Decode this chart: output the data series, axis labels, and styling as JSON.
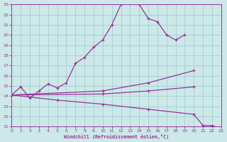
{
  "xlabel": "Windchill (Refroidissement éolien,°C)",
  "bg_color": "#cce8e8",
  "line_color": "#993399",
  "grid_color": "#99cccc",
  "xlim": [
    0,
    23
  ],
  "ylim": [
    11,
    23
  ],
  "xticks": [
    0,
    1,
    2,
    3,
    4,
    5,
    6,
    7,
    8,
    9,
    10,
    11,
    12,
    13,
    14,
    15,
    16,
    17,
    18,
    19,
    20,
    21,
    22,
    23
  ],
  "yticks": [
    11,
    12,
    13,
    14,
    15,
    16,
    17,
    18,
    19,
    20,
    21,
    22,
    23
  ],
  "line1_x": [
    0,
    1,
    2,
    3,
    4,
    5,
    6,
    7,
    8,
    9,
    10,
    11,
    12,
    13,
    14,
    15,
    16,
    17,
    18,
    19
  ],
  "line1_y": [
    14.1,
    14.9,
    13.8,
    14.5,
    15.2,
    14.8,
    15.3,
    17.2,
    17.8,
    18.8,
    19.5,
    21.0,
    23.0,
    23.1,
    23.0,
    21.6,
    21.3,
    20.0,
    19.5,
    20.0
  ],
  "line2_x": [
    0,
    10,
    15,
    20
  ],
  "line2_y": [
    14.1,
    14.5,
    15.3,
    16.5
  ],
  "line3_x": [
    0,
    10,
    15,
    20
  ],
  "line3_y": [
    14.1,
    14.2,
    14.5,
    14.9
  ],
  "line4_x": [
    0,
    5,
    10,
    15,
    20,
    21,
    22,
    23
  ],
  "line4_y": [
    14.1,
    13.6,
    13.2,
    12.7,
    12.2,
    11.1,
    11.1,
    10.8
  ]
}
